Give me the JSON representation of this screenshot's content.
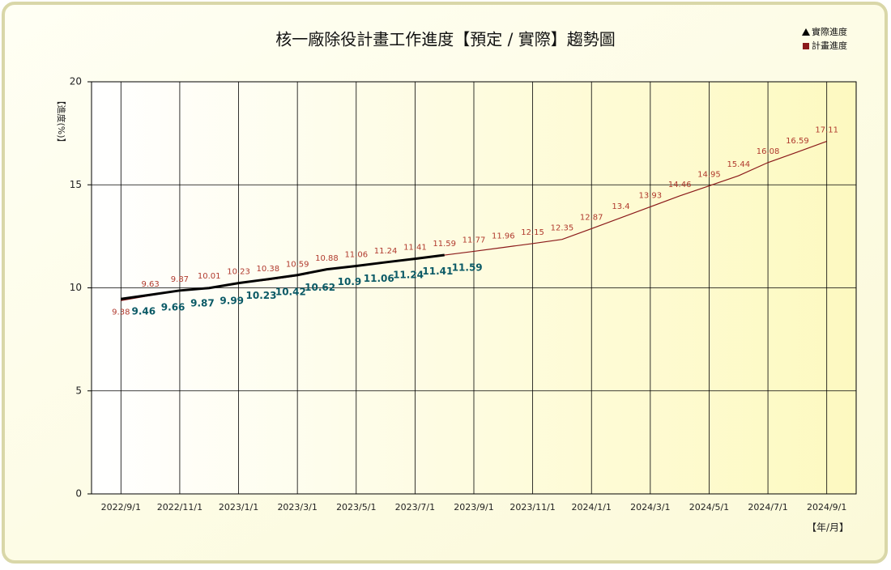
{
  "chart_data": {
    "type": "line",
    "title": "核一廠除役計畫工作進度【預定 / 實際】趨勢圖",
    "y_label": "【進度(%)】",
    "x_label": "【年/月】",
    "categories": [
      "2022/9/1",
      null,
      "2022/11/1",
      null,
      "2023/1/1",
      null,
      "2023/3/1",
      null,
      "2023/5/1",
      null,
      "2023/7/1",
      null,
      "2023/9/1",
      null,
      "2023/11/1",
      null,
      "2024/1/1",
      null,
      "2024/3/1",
      null,
      "2024/5/1",
      null,
      "2024/7/1",
      null,
      "2024/9/1"
    ],
    "series": [
      {
        "name": "實際進度",
        "color": "#000000",
        "label_color": "#0b5a66",
        "values": [
          9.46,
          9.66,
          9.87,
          9.99,
          10.23,
          10.42,
          10.62,
          10.9,
          11.06,
          11.24,
          11.41,
          11.59,
          null,
          null,
          null,
          null,
          null,
          null,
          null,
          null,
          null,
          null,
          null,
          null,
          null
        ]
      },
      {
        "name": "計畫進度",
        "color": "#8b1a1a",
        "label_color": "#b03a2e",
        "values": [
          9.38,
          9.63,
          9.87,
          10.01,
          10.23,
          10.38,
          10.59,
          10.88,
          11.06,
          11.24,
          11.41,
          11.59,
          11.77,
          11.96,
          12.15,
          12.35,
          12.87,
          13.4,
          13.93,
          14.46,
          14.95,
          15.44,
          16.08,
          16.59,
          17.11
        ]
      }
    ],
    "ylim": [
      0,
      20
    ],
    "yticks": [
      0,
      5,
      10,
      15,
      20
    ],
    "grid": true,
    "legend": "top-right"
  }
}
